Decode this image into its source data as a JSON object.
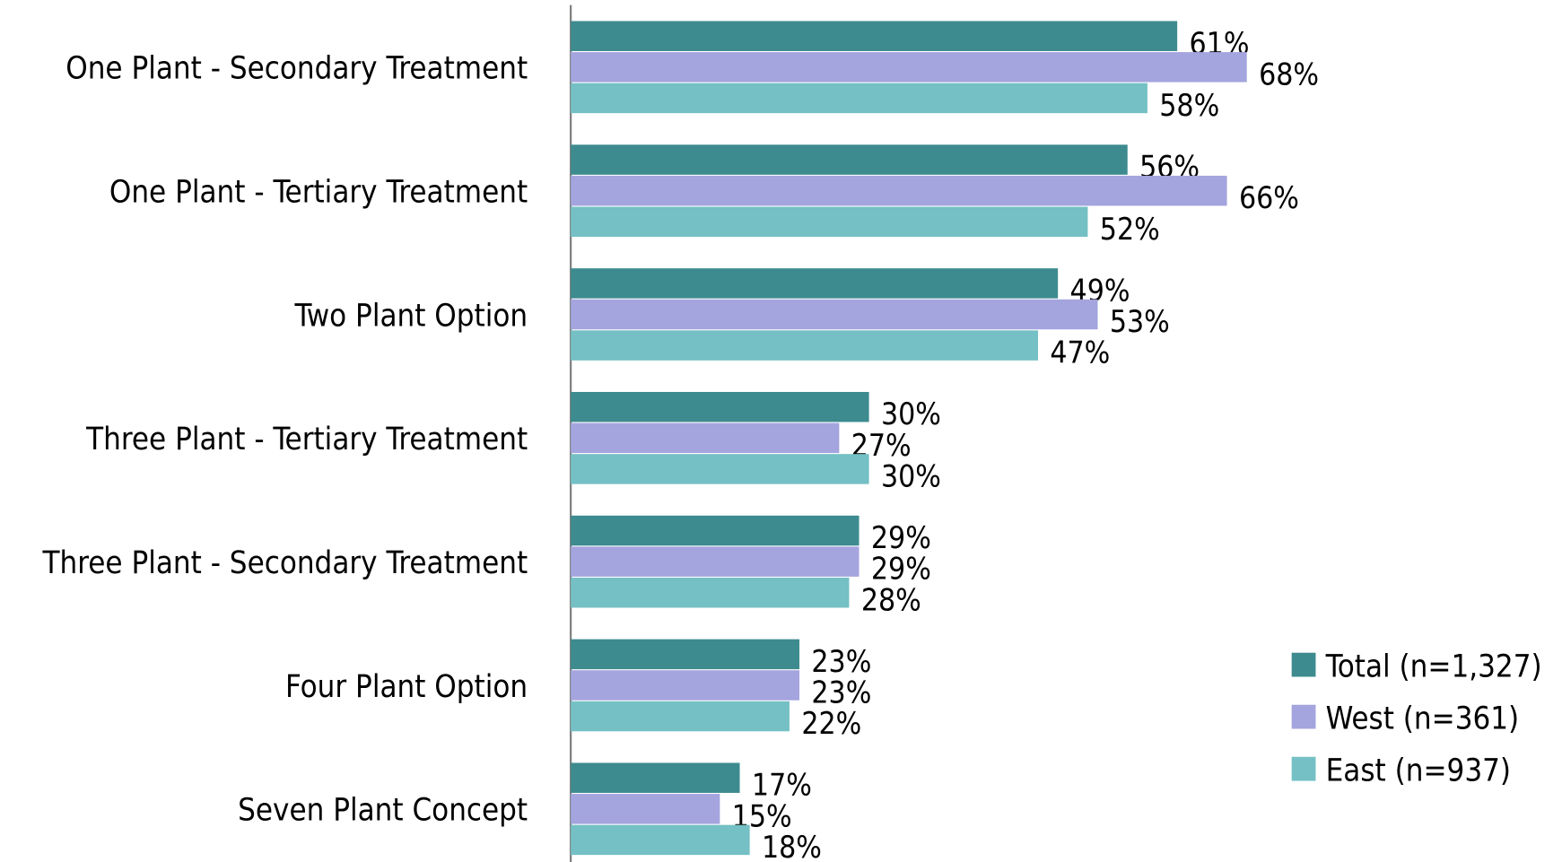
{
  "chart_data": {
    "type": "bar",
    "orientation": "horizontal",
    "categories": [
      "One Plant - Secondary Treatment",
      "One Plant - Tertiary Treatment",
      "Two Plant Option",
      "Three Plant - Tertiary Treatment",
      "Three Plant - Secondary Treatment",
      "Four Plant Option",
      "Seven Plant Concept"
    ],
    "xlim": [
      0,
      100
    ],
    "legend": "right",
    "series": [
      {
        "name": "Total (n=1,327)",
        "color": "#3d8b8f",
        "values": [
          61,
          56,
          49,
          30,
          29,
          23,
          17
        ],
        "value_labels": [
          "61%",
          "56%",
          "49%",
          "30%",
          "29%",
          "23%",
          "17%"
        ]
      },
      {
        "name": "West (n=361)",
        "color": "#a4a4de",
        "values": [
          68,
          66,
          53,
          27,
          29,
          23,
          15
        ],
        "value_labels": [
          "68%",
          "66%",
          "53%",
          "27%",
          "29%",
          "23%",
          "15%"
        ]
      },
      {
        "name": "East (n=937)",
        "color": "#74c0c4",
        "values": [
          58,
          52,
          47,
          30,
          28,
          22,
          18
        ],
        "value_labels": [
          "58%",
          "52%",
          "47%",
          "30%",
          "28%",
          "22%",
          "18%"
        ]
      }
    ]
  }
}
